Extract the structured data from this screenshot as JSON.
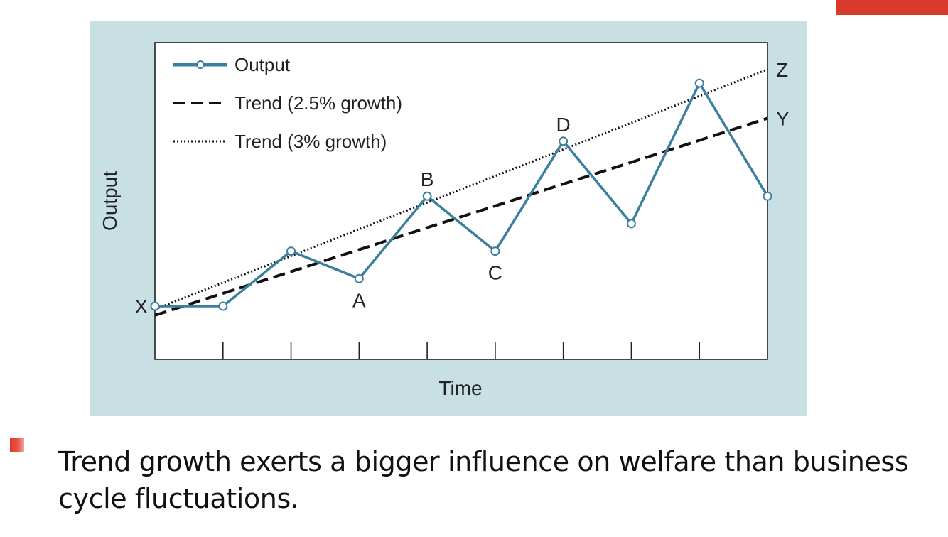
{
  "slide": {
    "accent_color": "#d9392b",
    "bullet_icon": "square-bullet-icon",
    "bullet_text": "Trend growth exerts a bigger influence on welfare than  business cycle fluctuations."
  },
  "chart_data": {
    "type": "line",
    "title": "",
    "xlabel": "Time",
    "ylabel": "Output",
    "x": [
      0,
      1,
      2,
      3,
      4,
      5,
      6,
      7,
      8,
      9
    ],
    "xlim": [
      0,
      9
    ],
    "ylim": [
      0,
      100
    ],
    "grid": false,
    "legend_position": "top-left",
    "series": [
      {
        "name": "Output",
        "style": "solid-with-markers",
        "color": "#3b7f9e",
        "values": [
          10,
          10,
          28,
          19,
          46,
          28,
          64,
          37,
          83,
          46
        ]
      },
      {
        "name": "Trend (2.5% growth)",
        "style": "dashed",
        "color": "#111111",
        "values": [
          7,
          14.2,
          21.3,
          28.5,
          35.7,
          42.8,
          50,
          57.1,
          64.3,
          71.5
        ]
      },
      {
        "name": "Trend (3% growth)",
        "style": "dotted",
        "color": "#111111",
        "values": [
          9,
          17.7,
          26.4,
          35.2,
          43.9,
          52.6,
          61.3,
          70,
          78.8,
          87.5
        ]
      }
    ],
    "annotations": [
      {
        "text": "X",
        "x": 0,
        "y": 10,
        "anchor": "left"
      },
      {
        "text": "A",
        "x": 3,
        "y": 19,
        "anchor": "below"
      },
      {
        "text": "B",
        "x": 4,
        "y": 46,
        "anchor": "above"
      },
      {
        "text": "C",
        "x": 5,
        "y": 28,
        "anchor": "below"
      },
      {
        "text": "D",
        "x": 6,
        "y": 64,
        "anchor": "above"
      },
      {
        "text": "Z",
        "x": 9,
        "y": 87.5,
        "anchor": "right"
      },
      {
        "text": "Y",
        "x": 9,
        "y": 71.5,
        "anchor": "right"
      }
    ]
  }
}
